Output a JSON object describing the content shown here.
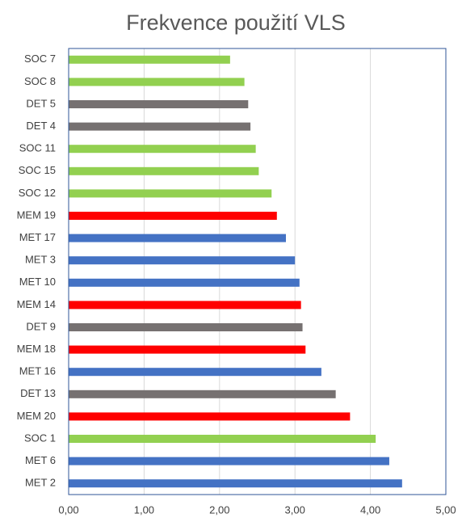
{
  "chart_data": {
    "type": "bar",
    "orientation": "horizontal",
    "title": "Frekvence použití VLS",
    "categories": [
      "SOC 7",
      "SOC 8",
      "DET 5",
      "DET 4",
      "SOC 11",
      "SOC 15",
      "SOC 12",
      "MEM 19",
      "MET 17",
      "MET 3",
      "MET 10",
      "MEM 14",
      "DET 9",
      "MEM 18",
      "MET 16",
      "DET 13",
      "MEM 20",
      "SOC 1",
      "MET 6",
      "MET 2"
    ],
    "values": [
      2.14,
      2.33,
      2.38,
      2.41,
      2.48,
      2.52,
      2.69,
      2.76,
      2.88,
      3.0,
      3.06,
      3.08,
      3.1,
      3.14,
      3.35,
      3.54,
      3.73,
      4.07,
      4.25,
      4.42
    ],
    "colors": [
      "#92d050",
      "#92d050",
      "#767171",
      "#767171",
      "#92d050",
      "#92d050",
      "#92d050",
      "#ff0000",
      "#4472c4",
      "#4472c4",
      "#4472c4",
      "#ff0000",
      "#767171",
      "#ff0000",
      "#4472c4",
      "#767171",
      "#ff0000",
      "#92d050",
      "#4472c4",
      "#4472c4"
    ],
    "xlim": [
      0,
      5
    ],
    "xticks": [
      {
        "value": 0,
        "label": "0,00"
      },
      {
        "value": 1,
        "label": "1,00"
      },
      {
        "value": 2,
        "label": "2,00"
      },
      {
        "value": 3,
        "label": "3,00"
      },
      {
        "value": 4,
        "label": "4,00"
      },
      {
        "value": 5,
        "label": "5,00"
      }
    ],
    "grid": true
  }
}
